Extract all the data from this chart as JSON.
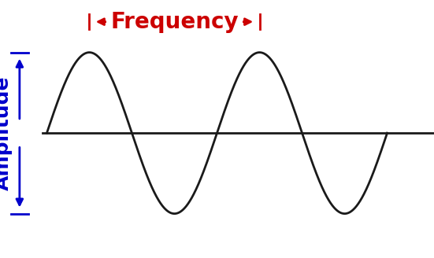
{
  "background_color": "#ffffff",
  "wave_color": "#1a1a1a",
  "baseline_color": "#1a1a1a",
  "frequency_label": "Frequency",
  "frequency_color": "#cc0000",
  "amplitude_label": "Amplitude",
  "amplitude_color": "#0000cc",
  "freq_fontsize": 20,
  "amp_fontsize": 18,
  "wave_amplitude": 1.0,
  "line_width": 2.0,
  "freq_arrow_color": "#cc0000",
  "amp_arrow_color": "#0000cc",
  "xlim": [
    -0.55,
    4.55
  ],
  "ylim": [
    -1.55,
    1.65
  ]
}
